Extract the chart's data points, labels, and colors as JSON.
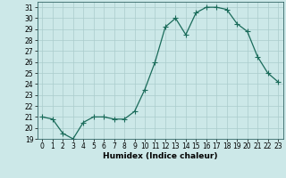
{
  "x": [
    0,
    1,
    2,
    3,
    4,
    5,
    6,
    7,
    8,
    9,
    10,
    11,
    12,
    13,
    14,
    15,
    16,
    17,
    18,
    19,
    20,
    21,
    22,
    23
  ],
  "y": [
    21.0,
    20.8,
    19.5,
    19.0,
    20.5,
    21.0,
    21.0,
    20.8,
    20.8,
    21.5,
    23.5,
    26.0,
    29.2,
    30.0,
    28.5,
    30.5,
    31.0,
    31.0,
    30.8,
    29.5,
    28.8,
    26.5,
    25.0,
    24.2
  ],
  "line_color": "#1a6b5a",
  "marker": "+",
  "marker_size": 4,
  "marker_color": "#1a6b5a",
  "xlabel": "Humidex (Indice chaleur)",
  "xlim": [
    -0.5,
    23.5
  ],
  "ylim": [
    19,
    31.5
  ],
  "yticks": [
    19,
    20,
    21,
    22,
    23,
    24,
    25,
    26,
    27,
    28,
    29,
    30,
    31
  ],
  "xticks": [
    0,
    1,
    2,
    3,
    4,
    5,
    6,
    7,
    8,
    9,
    10,
    11,
    12,
    13,
    14,
    15,
    16,
    17,
    18,
    19,
    20,
    21,
    22,
    23
  ],
  "bg_color": "#cce8e8",
  "grid_color": "#aacccc",
  "tick_fontsize": 5.5,
  "xlabel_fontsize": 6.5,
  "line_width": 0.9
}
